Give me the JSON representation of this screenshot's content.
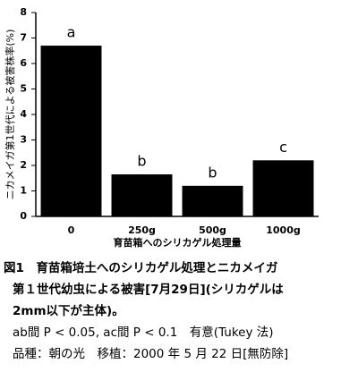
{
  "chart_data": {
    "type": "bar",
    "y_label": "ニカメイガ第1世代による被害株率(%)",
    "x_label": "育苗箱へのシリカゲル処理量",
    "categories": [
      "0",
      "250g",
      "500g",
      "1000g"
    ],
    "values": [
      6.7,
      1.65,
      1.2,
      2.2
    ],
    "significance_labels": [
      "a",
      "b",
      "b",
      "c"
    ],
    "color": "#000000",
    "ylim": [
      0,
      8
    ],
    "yticks": [
      0,
      1,
      2,
      3,
      4,
      5,
      6,
      7,
      8
    ],
    "grid": false
  },
  "caption": [
    "図1　育苗箱培土へのシリカゲル処理とニカメイガ",
    "第１世代幼虫による被害[7月29日](シリカゲルは",
    "2mm以下が主体)。",
    "ab間 P < 0.05,  ac間 P < 0.1　有意(Tukey 法)",
    "品種：朝の光　移植：2000 年 5 月 22 日[無防除]"
  ]
}
